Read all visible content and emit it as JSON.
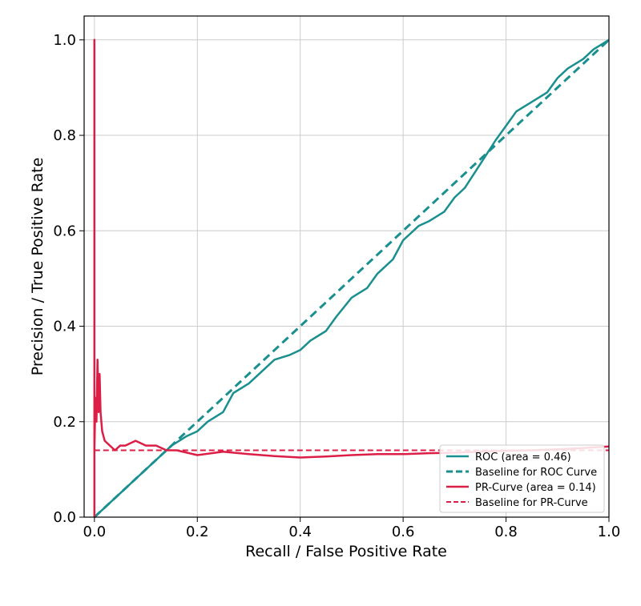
{
  "chart_data": {
    "type": "line",
    "title": "",
    "xlabel": "Recall / False Positive Rate",
    "ylabel": "Precision / True Positive Rate",
    "xlim": [
      -0.02,
      1.0
    ],
    "ylim": [
      0.0,
      1.05
    ],
    "x_ticks": [
      "0.0",
      "0.2",
      "0.4",
      "0.6",
      "0.8",
      "1.0"
    ],
    "y_ticks": [
      "0.0",
      "0.2",
      "0.4",
      "0.6",
      "0.8",
      "1.0"
    ],
    "grid": true,
    "legend_position": "lower-right",
    "series": [
      {
        "name": "ROC (area = 0.46)",
        "color": "#1a8f8f",
        "style": "solid",
        "x": [
          0.0,
          0.02,
          0.05,
          0.08,
          0.12,
          0.15,
          0.18,
          0.2,
          0.22,
          0.25,
          0.27,
          0.3,
          0.33,
          0.35,
          0.38,
          0.4,
          0.42,
          0.45,
          0.47,
          0.5,
          0.53,
          0.55,
          0.58,
          0.6,
          0.63,
          0.65,
          0.68,
          0.7,
          0.72,
          0.75,
          0.78,
          0.8,
          0.82,
          0.85,
          0.88,
          0.9,
          0.92,
          0.95,
          0.97,
          1.0
        ],
        "y": [
          0.0,
          0.02,
          0.05,
          0.08,
          0.12,
          0.15,
          0.17,
          0.18,
          0.2,
          0.22,
          0.26,
          0.28,
          0.31,
          0.33,
          0.34,
          0.35,
          0.37,
          0.39,
          0.42,
          0.46,
          0.48,
          0.51,
          0.54,
          0.58,
          0.61,
          0.62,
          0.64,
          0.67,
          0.69,
          0.74,
          0.79,
          0.82,
          0.85,
          0.87,
          0.89,
          0.92,
          0.94,
          0.96,
          0.98,
          1.0
        ]
      },
      {
        "name": "Baseline for ROC Curve",
        "color": "#1a8f8f",
        "style": "dashed",
        "x": [
          0.0,
          1.0
        ],
        "y": [
          0.0,
          1.0
        ]
      },
      {
        "name": "PR-Curve (area = 0.14)",
        "color": "#dc1e46",
        "style": "solid",
        "x": [
          0.0,
          0.0,
          0.0,
          0.002,
          0.004,
          0.006,
          0.008,
          0.01,
          0.012,
          0.015,
          0.02,
          0.03,
          0.04,
          0.05,
          0.06,
          0.08,
          0.1,
          0.12,
          0.14,
          0.16,
          0.18,
          0.2,
          0.25,
          0.3,
          0.35,
          0.4,
          0.45,
          0.5,
          0.55,
          0.6,
          0.65,
          0.7,
          0.75,
          0.8,
          0.85,
          0.9,
          0.95,
          1.0
        ],
        "y": [
          0.0,
          1.0,
          0.14,
          0.25,
          0.2,
          0.33,
          0.22,
          0.3,
          0.22,
          0.18,
          0.16,
          0.15,
          0.14,
          0.15,
          0.15,
          0.16,
          0.15,
          0.15,
          0.14,
          0.14,
          0.135,
          0.13,
          0.137,
          0.132,
          0.128,
          0.125,
          0.127,
          0.13,
          0.132,
          0.132,
          0.134,
          0.135,
          0.137,
          0.139,
          0.14,
          0.142,
          0.145,
          0.148
        ]
      },
      {
        "name": "Baseline for PR-Curve",
        "color": "#dc1e46",
        "style": "dashed",
        "x": [
          0.0,
          1.0
        ],
        "y": [
          0.14,
          0.14
        ]
      }
    ]
  }
}
